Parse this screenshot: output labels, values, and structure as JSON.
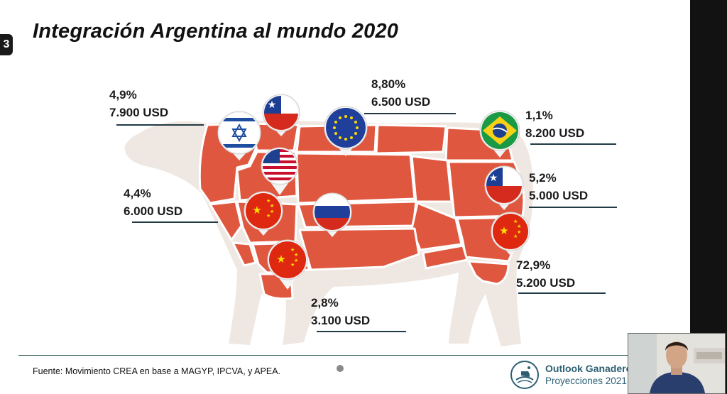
{
  "slide": {
    "number": "3",
    "title": "Integración Argentina al mundo 2020"
  },
  "markets": [
    {
      "flag": "israel-flag",
      "pct": "4,9%",
      "usd": "7.900 USD"
    },
    {
      "flag": "chile-flag",
      "pct": "4,4%",
      "usd": "6.000 USD"
    },
    {
      "flag": "eu-flag",
      "pct": "8,80%",
      "usd": "6.500 USD"
    },
    {
      "flag": "brazil-flag",
      "pct": "1,1%",
      "usd": "8.200 USD"
    },
    {
      "flag": "chile-flag",
      "pct": "5,2%",
      "usd": "5.000 USD"
    },
    {
      "flag": "china-flag",
      "pct": "72,9%",
      "usd": "5.200 USD"
    },
    {
      "flag": "russia-flag",
      "pct": "2,8%",
      "usd": "3.100 USD"
    }
  ],
  "footer": {
    "source": "Fuente: Movimiento CREA en base a MAGYP, IPCVA, y APEA.",
    "brand_line1": "Outlook Ganadero",
    "brand_line2": "Proyecciones 2021"
  },
  "colors": {
    "meat": "#e0573f",
    "meat_lines": "#ffffff",
    "cow_silhouette": "#efe8e2",
    "underline": "#1f3a44",
    "brand": "#2c5f73"
  }
}
